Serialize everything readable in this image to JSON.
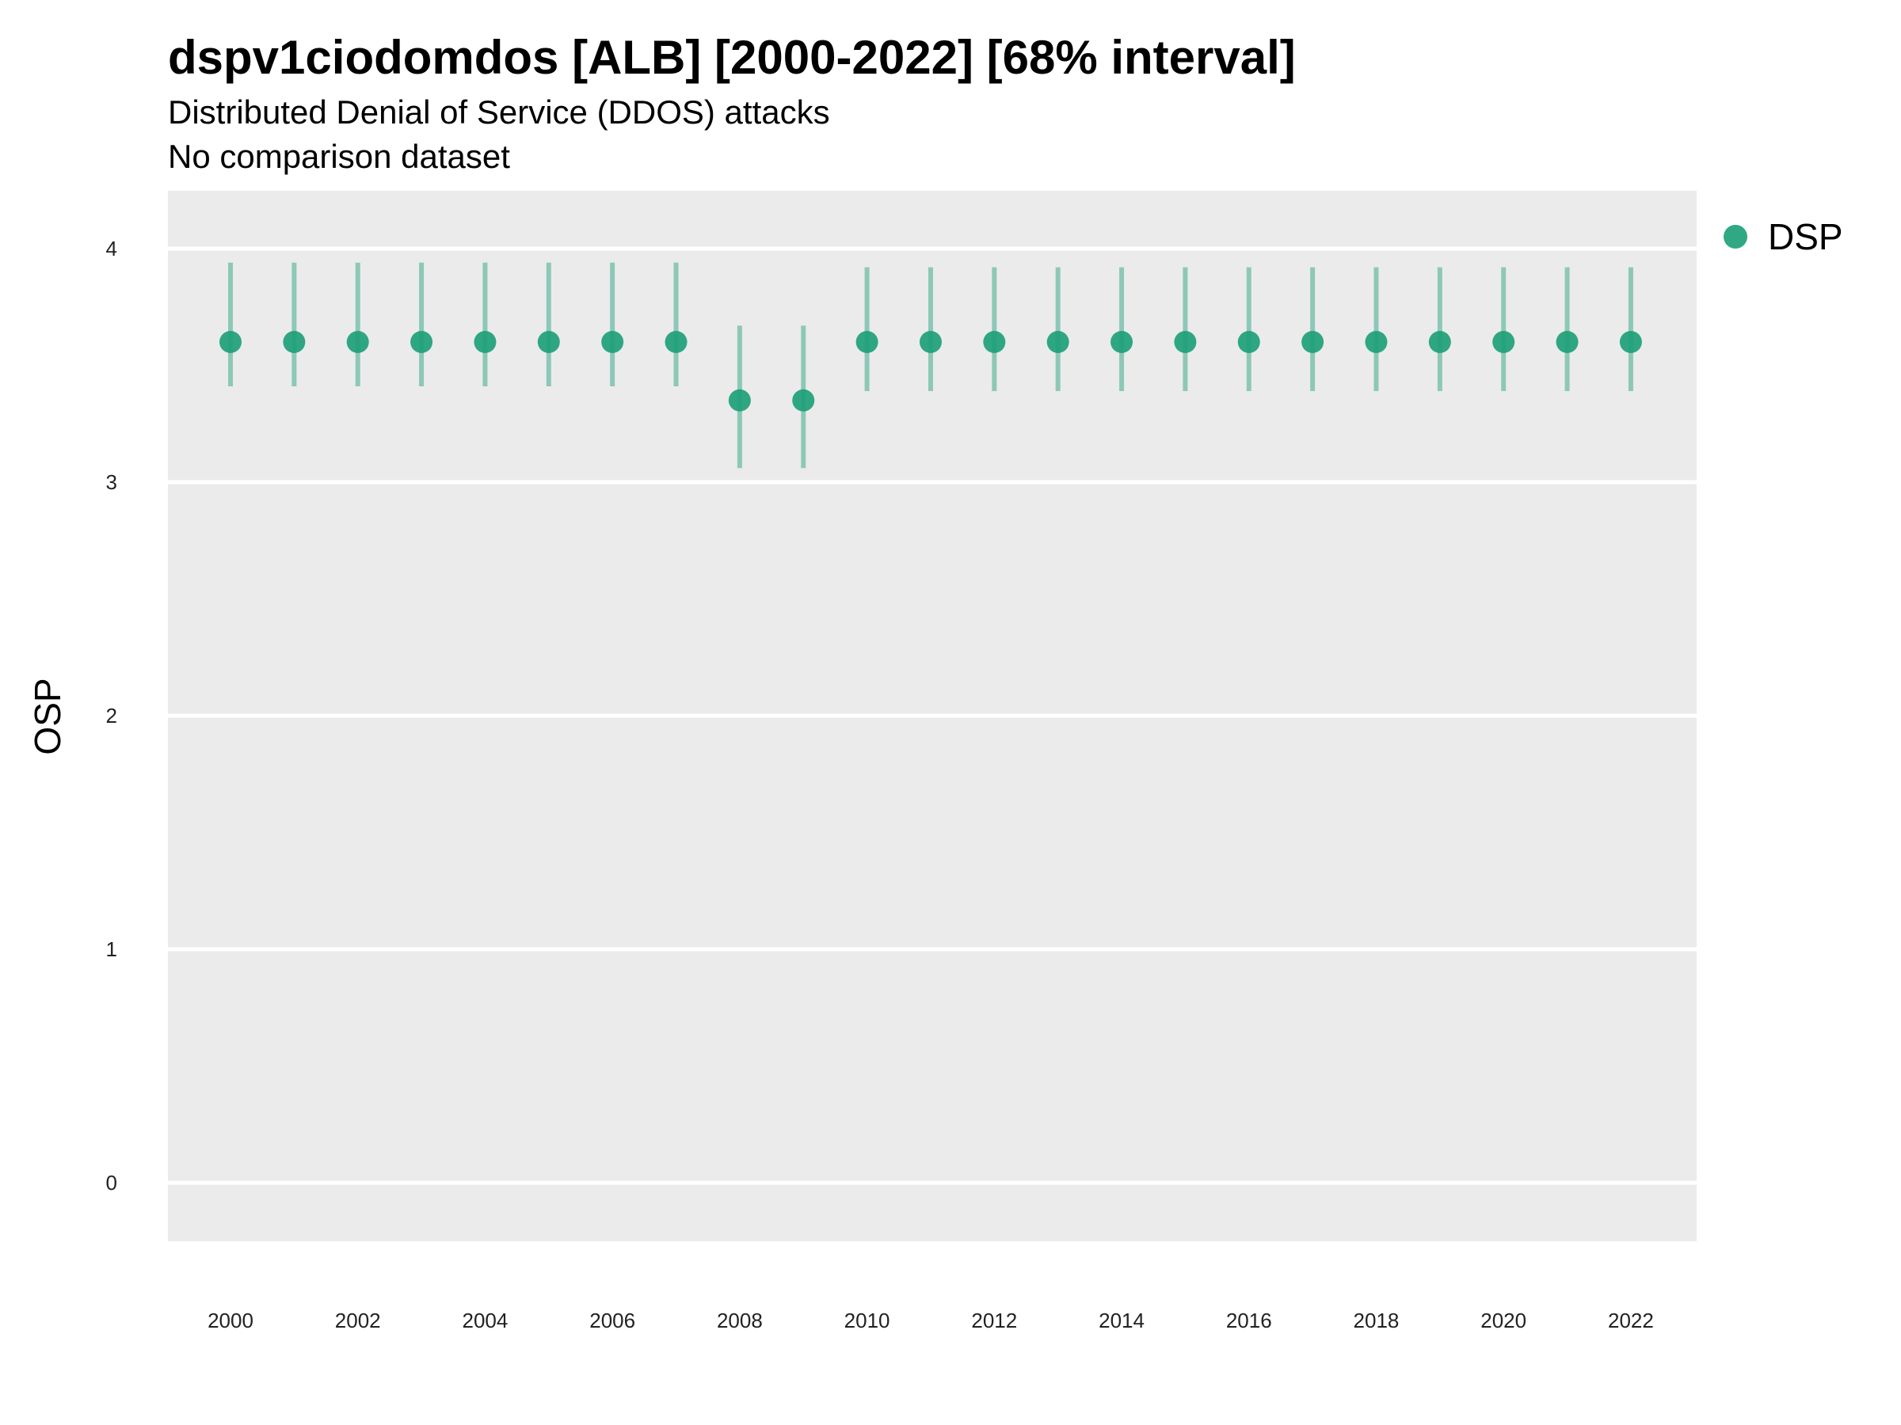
{
  "chart_data": {
    "type": "scatter",
    "title": "dspv1ciodomdos [ALB] [2000-2022] [68% interval]",
    "subtitle": "Distributed Denial of Service (DDOS) attacks",
    "subtitle2": "No comparison dataset",
    "xlabel": "",
    "ylabel": "OSP",
    "ylim": [
      -0.25,
      4.25
    ],
    "yticks": [
      0,
      1,
      2,
      3,
      4
    ],
    "xtick_labels": [
      "2000",
      "2002",
      "2004",
      "2006",
      "2008",
      "2010",
      "2012",
      "2014",
      "2016",
      "2018",
      "2020",
      "2022"
    ],
    "grid": true,
    "legend_position": "top-right",
    "series": [
      {
        "name": "DSP",
        "color": "#1b9e77",
        "x": [
          2000,
          2001,
          2002,
          2003,
          2004,
          2005,
          2006,
          2007,
          2008,
          2009,
          2010,
          2011,
          2012,
          2013,
          2014,
          2015,
          2016,
          2017,
          2018,
          2019,
          2020,
          2021,
          2022
        ],
        "values": [
          3.6,
          3.6,
          3.6,
          3.6,
          3.6,
          3.6,
          3.6,
          3.6,
          3.35,
          3.35,
          3.6,
          3.6,
          3.6,
          3.6,
          3.6,
          3.6,
          3.6,
          3.6,
          3.6,
          3.6,
          3.6,
          3.6,
          3.6
        ],
        "lower": [
          3.41,
          3.41,
          3.41,
          3.41,
          3.41,
          3.41,
          3.41,
          3.41,
          3.06,
          3.06,
          3.39,
          3.39,
          3.39,
          3.39,
          3.39,
          3.39,
          3.39,
          3.39,
          3.39,
          3.39,
          3.39,
          3.39,
          3.39
        ],
        "upper": [
          3.94,
          3.94,
          3.94,
          3.94,
          3.94,
          3.94,
          3.94,
          3.94,
          3.67,
          3.67,
          3.92,
          3.92,
          3.92,
          3.92,
          3.92,
          3.92,
          3.92,
          3.92,
          3.92,
          3.92,
          3.92,
          3.92,
          3.92
        ]
      }
    ]
  }
}
